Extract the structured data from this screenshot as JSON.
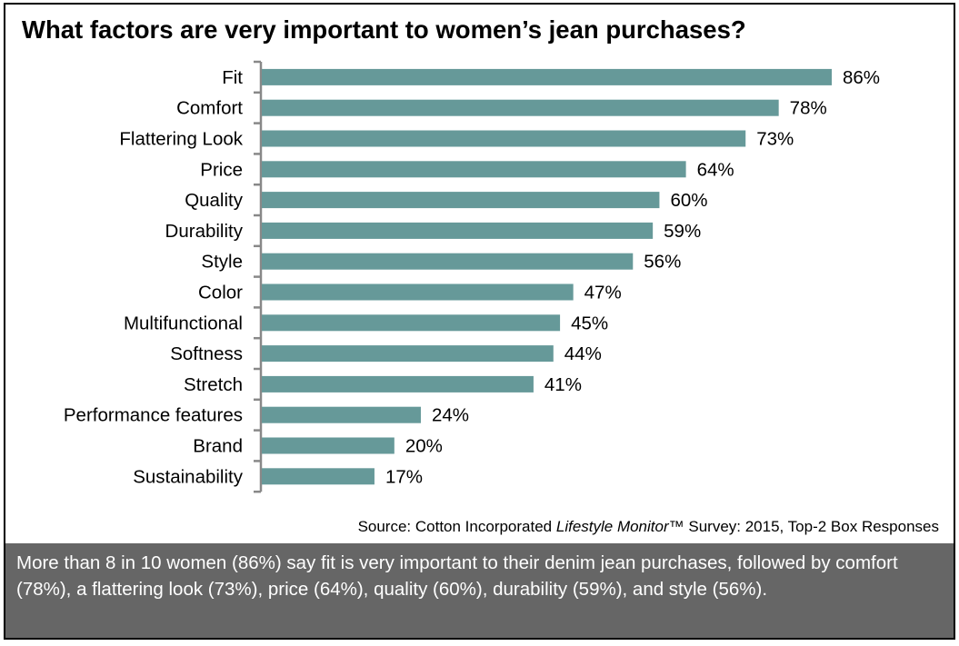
{
  "chart_data": {
    "type": "bar",
    "orientation": "horizontal",
    "title": "What factors are very important to women’s jean purchases?",
    "categories": [
      "Fit",
      "Comfort",
      "Flattering Look",
      "Price",
      "Quality",
      "Durability",
      "Style",
      "Color",
      "Multifunctional",
      "Softness",
      "Stretch",
      "Performance features",
      "Brand",
      "Sustainability"
    ],
    "values": [
      86,
      78,
      73,
      64,
      60,
      59,
      56,
      47,
      45,
      44,
      41,
      24,
      20,
      17
    ],
    "value_suffix": "%",
    "xlim": [
      0,
      86
    ],
    "bar_color": "#669999",
    "grid": false
  },
  "source": {
    "prefix": "Source: Cotton Incorporated ",
    "italic": "Lifestyle Monitor",
    "suffix": "™ Survey: 2015, Top-2 Box Responses"
  },
  "summary": "More than 8 in 10 women (86%) say fit is very important to their denim jean purchases, followed by comfort (78%), a flattering look (73%), price (64%), quality (60%), durability (59%), and style (56%)."
}
